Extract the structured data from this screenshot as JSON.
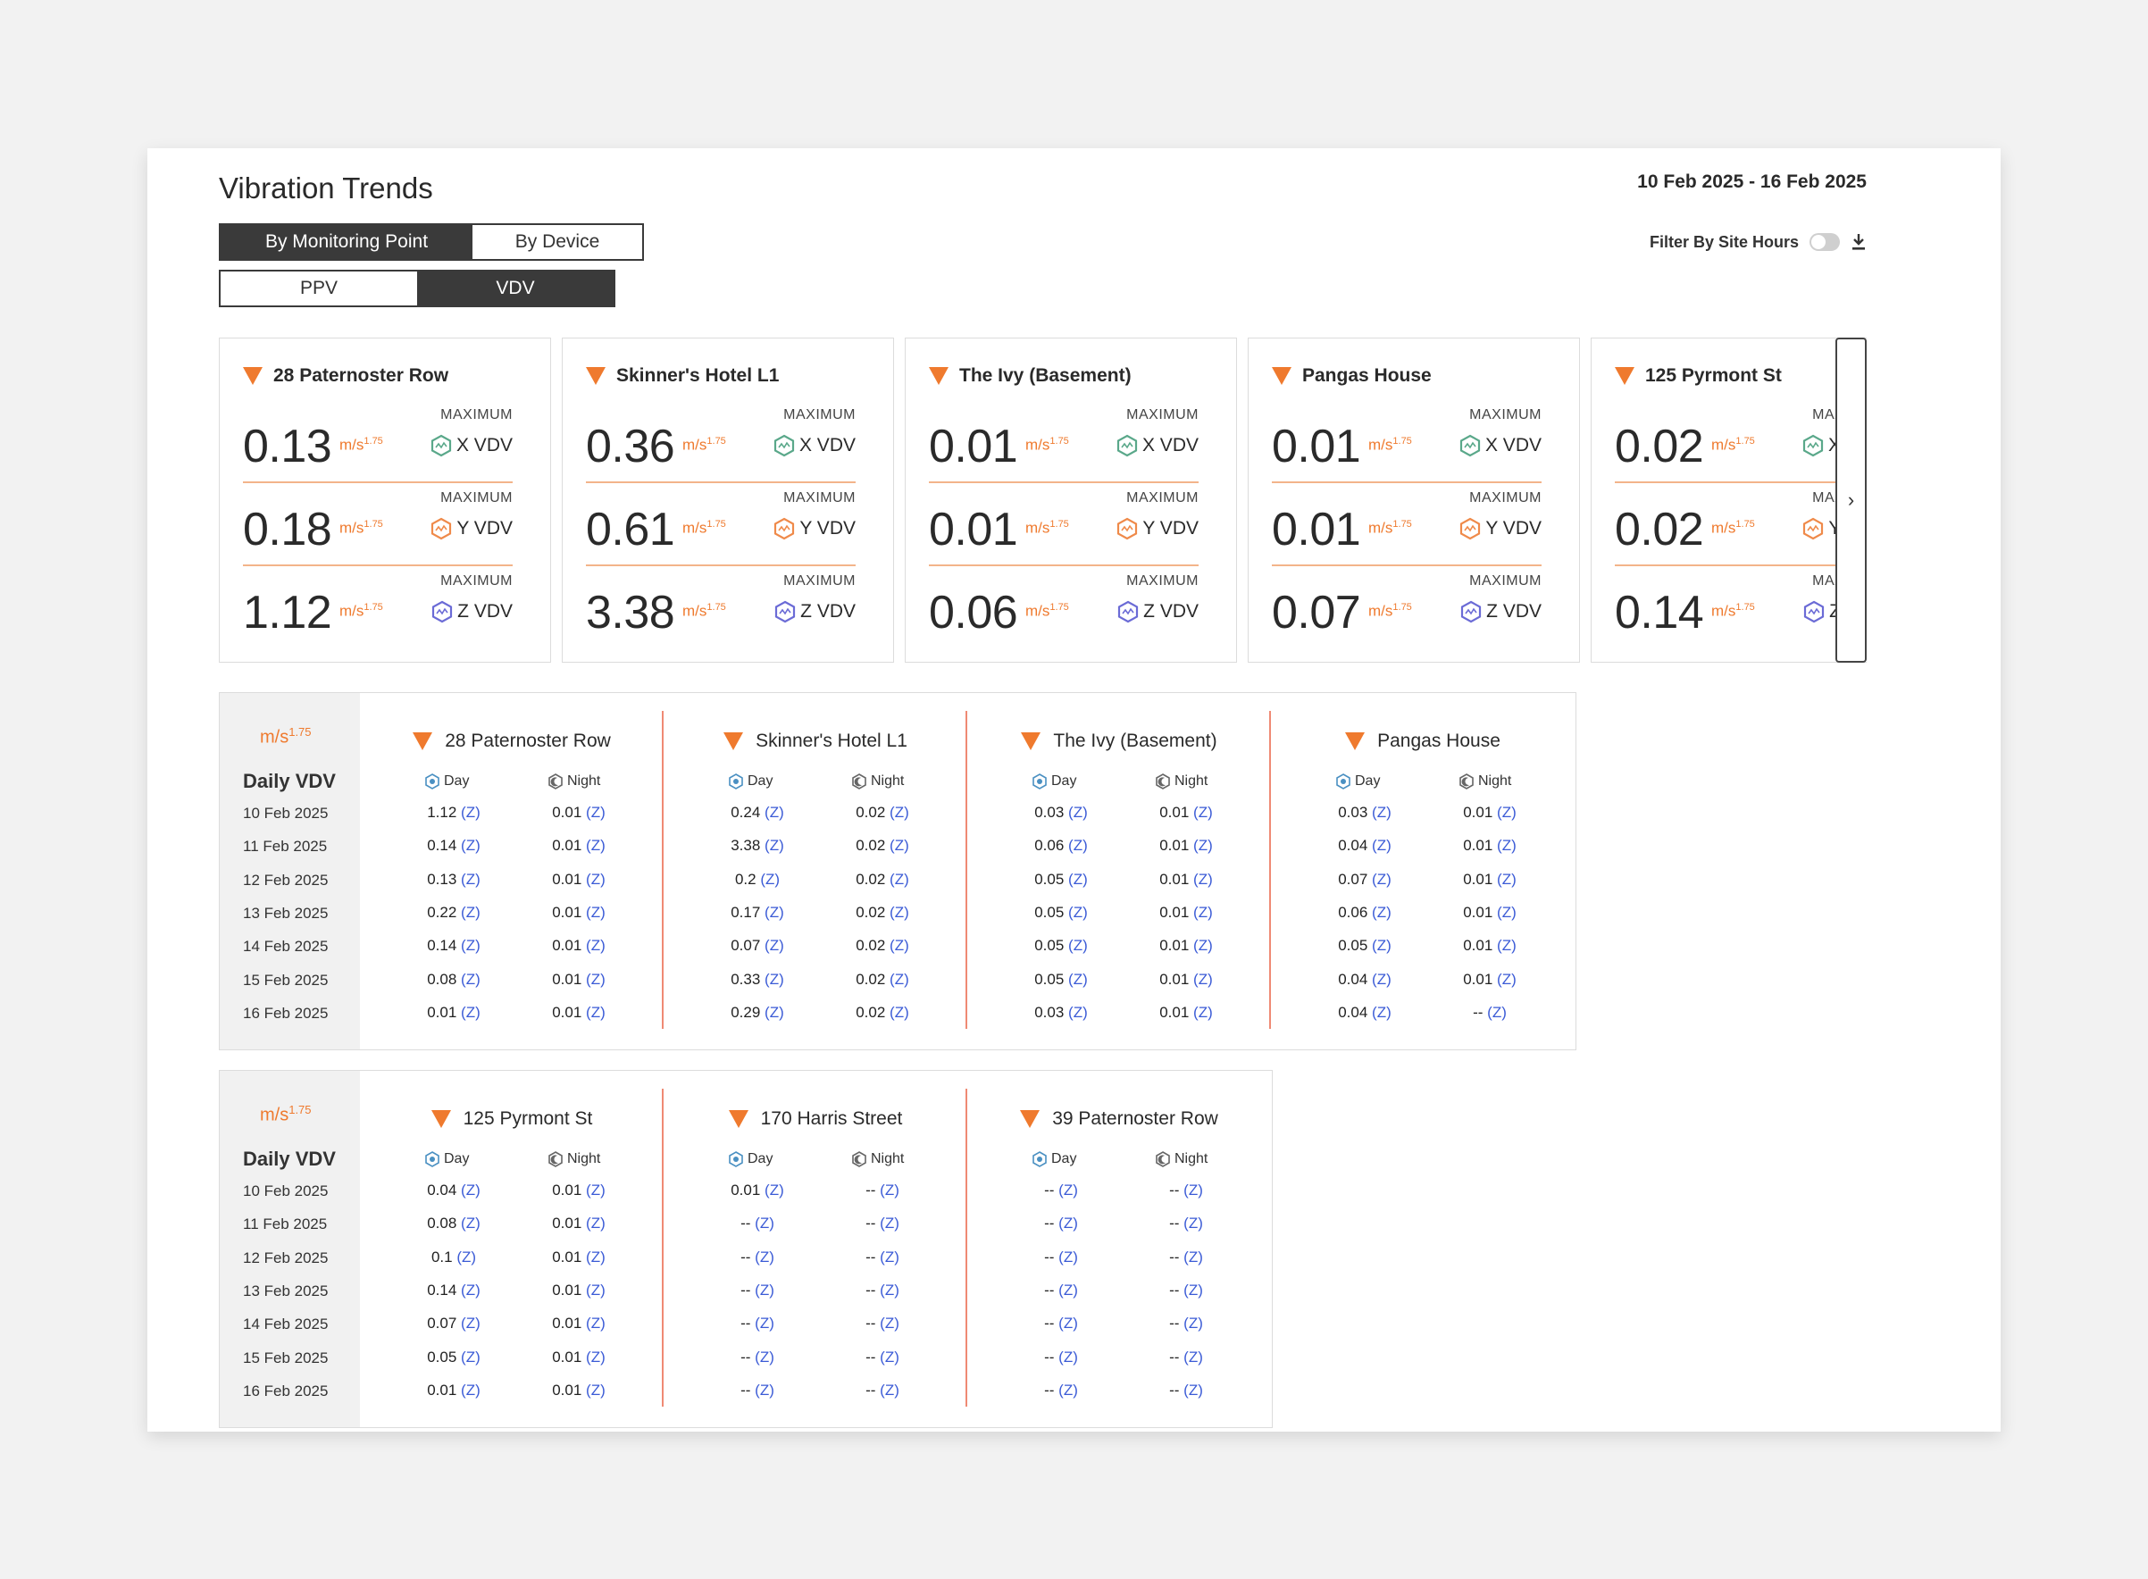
{
  "title": "Vibration Trends",
  "date_range": "10 Feb 2025 - 16 Feb 2025",
  "view_toggle": {
    "by_point": "By Monitoring Point",
    "by_device": "By Device"
  },
  "metric_toggle": {
    "ppv": "PPV",
    "vdv": "VDV"
  },
  "filter_label": "Filter By Site Hours",
  "unit": "m/s",
  "unit_exp": "1.75",
  "max_label": "MAXIMUM",
  "colors": {
    "accent": "#ef7a2e",
    "x": "#5aa88a",
    "y": "#ef8a4a",
    "z": "#6b6bd6",
    "day": "#4a90c2",
    "night": "#666666"
  },
  "cards": [
    {
      "name": "28 Paternoster Row",
      "x": "0.13",
      "y": "0.18",
      "z": "1.12",
      "x_label": "X VDV",
      "y_label": "Y VDV",
      "z_label": "Z VDV"
    },
    {
      "name": "Skinner's Hotel L1",
      "x": "0.36",
      "y": "0.61",
      "z": "3.38",
      "x_label": "X VDV",
      "y_label": "Y VDV",
      "z_label": "Z VDV"
    },
    {
      "name": "The Ivy (Basement)",
      "x": "0.01",
      "y": "0.01",
      "z": "0.06",
      "x_label": "X VDV",
      "y_label": "Y VDV",
      "z_label": "Z VDV"
    },
    {
      "name": "Pangas House",
      "x": "0.01",
      "y": "0.01",
      "z": "0.07",
      "x_label": "X VDV",
      "y_label": "Y VDV",
      "z_label": "Z VDV"
    },
    {
      "name": "125 Pyrmont St",
      "x": "0.02",
      "y": "0.02",
      "z": "0.14",
      "x_label": "X VDV",
      "y_label": "Y VDV",
      "z_label": "Z VDV"
    }
  ],
  "daily_label": "Daily VDV",
  "day_label": "Day",
  "night_label": "Night",
  "axis_tag": "(Z)",
  "dates": [
    "10 Feb 2025",
    "11 Feb 2025",
    "12 Feb 2025",
    "13 Feb 2025",
    "14 Feb 2025",
    "15 Feb 2025",
    "16 Feb 2025"
  ],
  "table1": [
    {
      "name": "28 Paternoster Row",
      "day": [
        "1.12",
        "0.14",
        "0.13",
        "0.22",
        "0.14",
        "0.08",
        "0.01"
      ],
      "night": [
        "0.01",
        "0.01",
        "0.01",
        "0.01",
        "0.01",
        "0.01",
        "0.01"
      ]
    },
    {
      "name": "Skinner's Hotel L1",
      "day": [
        "0.24",
        "3.38",
        "0.2",
        "0.17",
        "0.07",
        "0.33",
        "0.29"
      ],
      "night": [
        "0.02",
        "0.02",
        "0.02",
        "0.02",
        "0.02",
        "0.02",
        "0.02"
      ]
    },
    {
      "name": "The Ivy (Basement)",
      "day": [
        "0.03",
        "0.06",
        "0.05",
        "0.05",
        "0.05",
        "0.05",
        "0.03"
      ],
      "night": [
        "0.01",
        "0.01",
        "0.01",
        "0.01",
        "0.01",
        "0.01",
        "0.01"
      ]
    },
    {
      "name": "Pangas House",
      "day": [
        "0.03",
        "0.04",
        "0.07",
        "0.06",
        "0.05",
        "0.04",
        "0.04"
      ],
      "night": [
        "0.01",
        "0.01",
        "0.01",
        "0.01",
        "0.01",
        "0.01",
        "--"
      ]
    }
  ],
  "table2": [
    {
      "name": "125 Pyrmont St",
      "day": [
        "0.04",
        "0.08",
        "0.1",
        "0.14",
        "0.07",
        "0.05",
        "0.01"
      ],
      "night": [
        "0.01",
        "0.01",
        "0.01",
        "0.01",
        "0.01",
        "0.01",
        "0.01"
      ]
    },
    {
      "name": "170 Harris Street",
      "day": [
        "0.01",
        "--",
        "--",
        "--",
        "--",
        "--",
        "--"
      ],
      "night": [
        "--",
        "--",
        "--",
        "--",
        "--",
        "--",
        "--"
      ]
    },
    {
      "name": "39 Paternoster Row",
      "day": [
        "--",
        "--",
        "--",
        "--",
        "--",
        "--",
        "--"
      ],
      "night": [
        "--",
        "--",
        "--",
        "--",
        "--",
        "--",
        "--"
      ]
    }
  ]
}
